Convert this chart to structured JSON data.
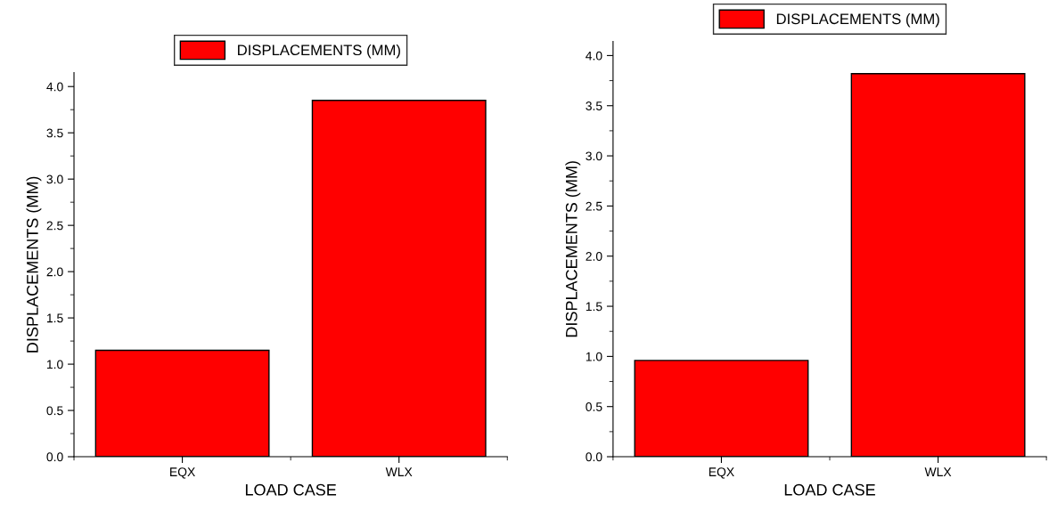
{
  "chart_data": [
    {
      "type": "bar",
      "categories": [
        "EQX",
        "WLX"
      ],
      "series": [
        {
          "name": "DISPLACEMENTS (MM)",
          "color": "#ff0000",
          "values": [
            1.15,
            3.85
          ]
        }
      ],
      "xlabel": "LOAD CASE",
      "ylabel": "DISPLACEMENTS (MM)",
      "ylim": [
        0,
        4.15
      ],
      "yticks": [
        {
          "value": 0,
          "label": "0.0"
        },
        {
          "value": 0.5,
          "label": "0.5"
        },
        {
          "value": 1,
          "label": "1.0"
        },
        {
          "value": 1.5,
          "label": "1.5"
        },
        {
          "value": 2,
          "label": "2.0"
        },
        {
          "value": 2.5,
          "label": "2.5"
        },
        {
          "value": 3,
          "label": "3.0"
        },
        {
          "value": 3.5,
          "label": "3.5"
        },
        {
          "value": 4,
          "label": "4.0"
        }
      ],
      "legend": "top",
      "grid": false
    },
    {
      "type": "bar",
      "categories": [
        "EQX",
        "WLX"
      ],
      "series": [
        {
          "name": "DISPLACEMENTS (MM)",
          "color": "#ff0000",
          "values": [
            0.96,
            3.82
          ]
        }
      ],
      "xlabel": "LOAD CASE",
      "ylabel": "DISPLACEMENTS (MM)",
      "ylim": [
        0,
        4.14
      ],
      "yticks": [
        {
          "value": 0,
          "label": "0.0"
        },
        {
          "value": 0.5,
          "label": "0.5"
        },
        {
          "value": 1,
          "label": "1.0"
        },
        {
          "value": 1.5,
          "label": "1.5"
        },
        {
          "value": 2,
          "label": "2.0"
        },
        {
          "value": 2.5,
          "label": "2.5"
        },
        {
          "value": 3,
          "label": "3.0"
        },
        {
          "value": 3.5,
          "label": "3.5"
        },
        {
          "value": 4,
          "label": "4.0"
        }
      ],
      "legend": "top",
      "grid": false
    }
  ]
}
